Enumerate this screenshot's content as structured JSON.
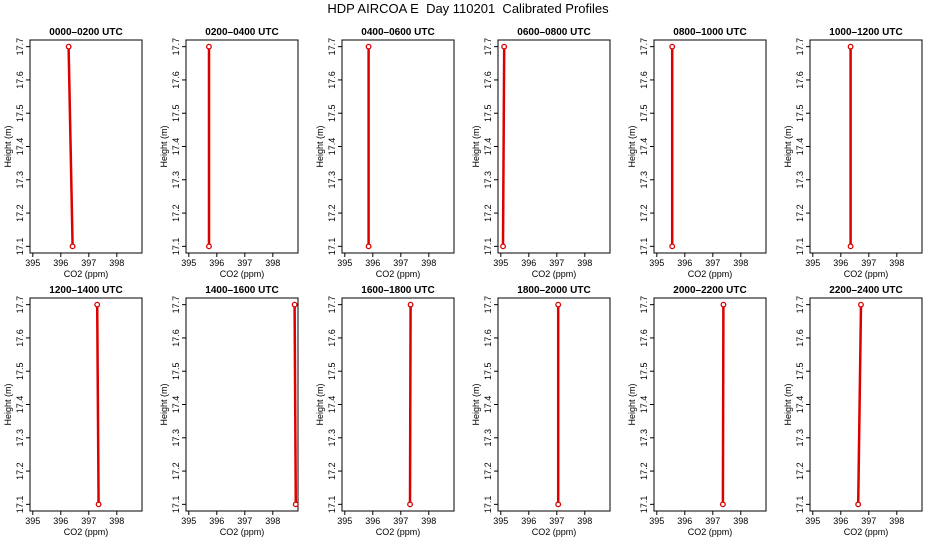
{
  "title": "HDP AIRCOA E  Day 110201  Calibrated Profiles",
  "colors": {
    "profile": "#dd0000",
    "axes": "#000000",
    "background": "#ffffff"
  },
  "chart_data": [
    {
      "type": "line",
      "title": "0000–0200 UTC",
      "xlabel": "CO2 (ppm)",
      "ylabel": "Height (m)",
      "xlim": [
        394.9,
        398.9
      ],
      "ylim": [
        17.08,
        17.72
      ],
      "xticks": [
        "395",
        "396",
        "397",
        "398"
      ],
      "yticks": [
        "17.1",
        "17.2",
        "17.3",
        "17.4",
        "17.5",
        "17.6",
        "17.7"
      ],
      "series": [
        {
          "x": [
            396.28,
            396.42
          ],
          "y": [
            17.7,
            17.1
          ]
        }
      ]
    },
    {
      "type": "line",
      "title": "0200–0400 UTC",
      "xlabel": "CO2 (ppm)",
      "ylabel": "Height (m)",
      "xlim": [
        394.9,
        398.9
      ],
      "ylim": [
        17.08,
        17.72
      ],
      "xticks": [
        "395",
        "396",
        "397",
        "398"
      ],
      "yticks": [
        "17.1",
        "17.2",
        "17.3",
        "17.4",
        "17.5",
        "17.6",
        "17.7"
      ],
      "series": [
        {
          "x": [
            395.72,
            395.72
          ],
          "y": [
            17.7,
            17.1
          ]
        }
      ]
    },
    {
      "type": "line",
      "title": "0400–0600 UTC",
      "xlabel": "CO2 (ppm)",
      "ylabel": "Height (m)",
      "xlim": [
        394.9,
        398.9
      ],
      "ylim": [
        17.08,
        17.72
      ],
      "xticks": [
        "395",
        "396",
        "397",
        "398"
      ],
      "yticks": [
        "17.1",
        "17.2",
        "17.3",
        "17.4",
        "17.5",
        "17.6",
        "17.7"
      ],
      "series": [
        {
          "x": [
            395.85,
            395.85
          ],
          "y": [
            17.7,
            17.1
          ]
        }
      ]
    },
    {
      "type": "line",
      "title": "0600–0800 UTC",
      "xlabel": "CO2 (ppm)",
      "ylabel": "Height (m)",
      "xlim": [
        394.9,
        398.9
      ],
      "ylim": [
        17.08,
        17.72
      ],
      "xticks": [
        "395",
        "396",
        "397",
        "398"
      ],
      "yticks": [
        "17.1",
        "17.2",
        "17.3",
        "17.4",
        "17.5",
        "17.6",
        "17.7"
      ],
      "series": [
        {
          "x": [
            395.12,
            395.08
          ],
          "y": [
            17.7,
            17.1
          ]
        }
      ]
    },
    {
      "type": "line",
      "title": "0800–1000 UTC",
      "xlabel": "CO2 (ppm)",
      "ylabel": "Height (m)",
      "xlim": [
        394.9,
        398.9
      ],
      "ylim": [
        17.08,
        17.72
      ],
      "xticks": [
        "395",
        "396",
        "397",
        "398"
      ],
      "yticks": [
        "17.1",
        "17.2",
        "17.3",
        "17.4",
        "17.5",
        "17.6",
        "17.7"
      ],
      "series": [
        {
          "x": [
            395.55,
            395.55
          ],
          "y": [
            17.7,
            17.1
          ]
        }
      ]
    },
    {
      "type": "line",
      "title": "1000–1200 UTC",
      "xlabel": "CO2 (ppm)",
      "ylabel": "Height (m)",
      "xlim": [
        394.9,
        398.9
      ],
      "ylim": [
        17.08,
        17.72
      ],
      "xticks": [
        "395",
        "396",
        "397",
        "398"
      ],
      "yticks": [
        "17.1",
        "17.2",
        "17.3",
        "17.4",
        "17.5",
        "17.6",
        "17.7"
      ],
      "series": [
        {
          "x": [
            396.35,
            396.35
          ],
          "y": [
            17.7,
            17.1
          ]
        }
      ]
    },
    {
      "type": "line",
      "title": "1200–1400 UTC",
      "xlabel": "CO2 (ppm)",
      "ylabel": "Height (m)",
      "xlim": [
        394.9,
        398.9
      ],
      "ylim": [
        17.08,
        17.72
      ],
      "xticks": [
        "395",
        "396",
        "397",
        "398"
      ],
      "yticks": [
        "17.1",
        "17.2",
        "17.3",
        "17.4",
        "17.5",
        "17.6",
        "17.7"
      ],
      "series": [
        {
          "x": [
            397.3,
            397.35
          ],
          "y": [
            17.7,
            17.1
          ]
        }
      ]
    },
    {
      "type": "line",
      "title": "1400–1600 UTC",
      "xlabel": "CO2 (ppm)",
      "ylabel": "Height (m)",
      "xlim": [
        394.9,
        398.9
      ],
      "ylim": [
        17.08,
        17.72
      ],
      "xticks": [
        "395",
        "396",
        "397",
        "398"
      ],
      "yticks": [
        "17.1",
        "17.2",
        "17.3",
        "17.4",
        "17.5",
        "17.6",
        "17.7"
      ],
      "series": [
        {
          "x": [
            398.78,
            398.82
          ],
          "y": [
            17.7,
            17.1
          ]
        }
      ]
    },
    {
      "type": "line",
      "title": "1600–1800 UTC",
      "xlabel": "CO2 (ppm)",
      "ylabel": "Height (m)",
      "xlim": [
        394.9,
        398.9
      ],
      "ylim": [
        17.08,
        17.72
      ],
      "xticks": [
        "395",
        "396",
        "397",
        "398"
      ],
      "yticks": [
        "17.1",
        "17.2",
        "17.3",
        "17.4",
        "17.5",
        "17.6",
        "17.7"
      ],
      "series": [
        {
          "x": [
            397.35,
            397.33
          ],
          "y": [
            17.7,
            17.1
          ]
        }
      ]
    },
    {
      "type": "line",
      "title": "1800–2000 UTC",
      "xlabel": "CO2 (ppm)",
      "ylabel": "Height (m)",
      "xlim": [
        394.9,
        398.9
      ],
      "ylim": [
        17.08,
        17.72
      ],
      "xticks": [
        "395",
        "396",
        "397",
        "398"
      ],
      "yticks": [
        "17.1",
        "17.2",
        "17.3",
        "17.4",
        "17.5",
        "17.6",
        "17.7"
      ],
      "series": [
        {
          "x": [
            397.05,
            397.05
          ],
          "y": [
            17.7,
            17.1
          ]
        }
      ]
    },
    {
      "type": "line",
      "title": "2000–2200 UTC",
      "xlabel": "CO2 (ppm)",
      "ylabel": "Height (m)",
      "xlim": [
        394.9,
        398.9
      ],
      "ylim": [
        17.08,
        17.72
      ],
      "xticks": [
        "395",
        "396",
        "397",
        "398"
      ],
      "yticks": [
        "17.1",
        "17.2",
        "17.3",
        "17.4",
        "17.5",
        "17.6",
        "17.7"
      ],
      "series": [
        {
          "x": [
            397.38,
            397.36
          ],
          "y": [
            17.7,
            17.1
          ]
        }
      ]
    },
    {
      "type": "line",
      "title": "2200–2400 UTC",
      "xlabel": "CO2 (ppm)",
      "ylabel": "Height (m)",
      "xlim": [
        394.9,
        398.9
      ],
      "ylim": [
        17.08,
        17.72
      ],
      "xticks": [
        "395",
        "396",
        "397",
        "398"
      ],
      "yticks": [
        "17.1",
        "17.2",
        "17.3",
        "17.4",
        "17.5",
        "17.6",
        "17.7"
      ],
      "series": [
        {
          "x": [
            396.72,
            396.62
          ],
          "y": [
            17.7,
            17.1
          ]
        }
      ]
    }
  ]
}
